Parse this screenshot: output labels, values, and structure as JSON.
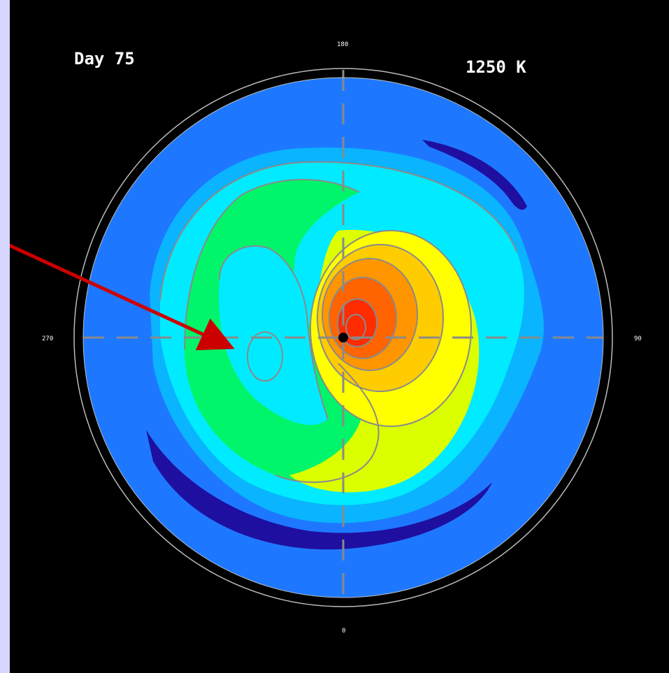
{
  "plot": {
    "day_label": "Day 75",
    "level_label": "1250 K",
    "longitudes": {
      "top": "180",
      "right": "90",
      "bottom": "0",
      "left": "270"
    }
  },
  "colors": {
    "page_background": "#d6d6ff",
    "panel_background": "#000000",
    "outer_field": "#1e78ff",
    "low_band": "#1e0fa0",
    "contour_line": "#8a8a8a",
    "arrow": "#cc0000",
    "palette": [
      "#0ab4ff",
      "#00ebff",
      "#00f56a",
      "#dcff00",
      "#ffff00",
      "#ffcc00",
      "#ff9600",
      "#ff6400",
      "#ff2c00"
    ]
  },
  "annotation": {
    "type": "arrow",
    "color": "red"
  }
}
